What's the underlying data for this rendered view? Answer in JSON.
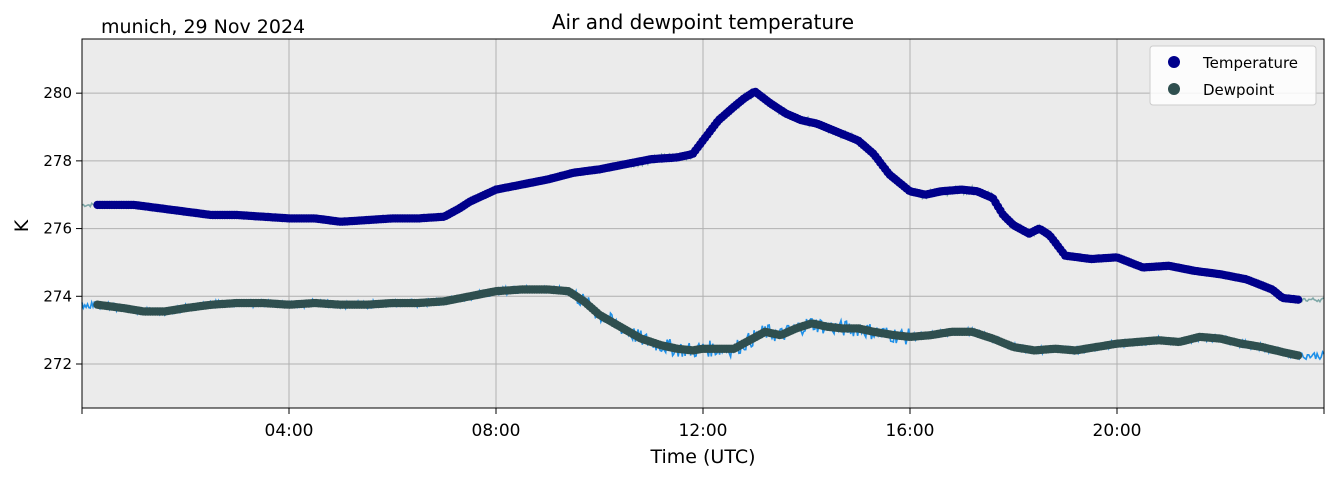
{
  "header": {
    "location_date": "munich, 29 Nov 2024"
  },
  "chart_data": {
    "type": "line",
    "title": "Air and dewpoint temperature",
    "xlabel": "Time (UTC)",
    "ylabel": "K",
    "xlim_hours": [
      0,
      24
    ],
    "ylim": [
      270.7,
      281.6
    ],
    "grid": true,
    "legend_position": "top-right",
    "x_ticks": [
      {
        "hour": 4,
        "label": "04:00"
      },
      {
        "hour": 8,
        "label": "08:00"
      },
      {
        "hour": 12,
        "label": "12:00"
      },
      {
        "hour": 16,
        "label": "16:00"
      },
      {
        "hour": 20,
        "label": "20:00"
      }
    ],
    "y_ticks": [
      272,
      274,
      276,
      278,
      280
    ],
    "series": [
      {
        "name": "Temperature",
        "color": "#00008b",
        "raw_color": "#7fa8a8",
        "x": [
          0.3,
          1.0,
          1.5,
          2.0,
          2.5,
          3.0,
          3.5,
          4.0,
          4.5,
          5.0,
          5.5,
          6.0,
          6.5,
          7.0,
          7.3,
          7.5,
          8.0,
          8.5,
          9.0,
          9.5,
          10.0,
          10.5,
          11.0,
          11.5,
          11.8,
          12.0,
          12.3,
          12.6,
          12.8,
          13.0,
          13.3,
          13.6,
          13.9,
          14.2,
          14.6,
          15.0,
          15.3,
          15.6,
          16.0,
          16.3,
          16.6,
          17.0,
          17.3,
          17.6,
          17.8,
          18.0,
          18.3,
          18.5,
          18.7,
          19.0,
          19.5,
          20.0,
          20.5,
          21.0,
          21.5,
          22.0,
          22.5,
          23.0,
          23.2,
          23.5
        ],
        "values": [
          276.7,
          276.7,
          276.6,
          276.5,
          276.4,
          276.4,
          276.35,
          276.3,
          276.3,
          276.2,
          276.25,
          276.3,
          276.3,
          276.35,
          276.6,
          276.8,
          277.15,
          277.3,
          277.45,
          277.65,
          277.75,
          277.9,
          278.05,
          278.1,
          278.2,
          278.6,
          279.2,
          279.6,
          279.85,
          280.05,
          279.7,
          279.4,
          279.2,
          279.1,
          278.85,
          278.6,
          278.2,
          277.6,
          277.1,
          277.0,
          277.1,
          277.15,
          277.1,
          276.9,
          276.4,
          276.1,
          275.85,
          276.0,
          275.8,
          275.2,
          275.1,
          275.15,
          274.85,
          274.9,
          274.75,
          274.65,
          274.5,
          274.2,
          273.95,
          273.9
        ]
      },
      {
        "name": "Dewpoint",
        "color": "#2f4f4f",
        "raw_color": "#1e90e8",
        "x": [
          0.3,
          0.8,
          1.2,
          1.6,
          2.0,
          2.5,
          3.0,
          3.5,
          4.0,
          4.5,
          5.0,
          5.5,
          6.0,
          6.5,
          7.0,
          7.5,
          8.0,
          8.5,
          9.0,
          9.4,
          9.7,
          10.0,
          10.4,
          10.8,
          11.2,
          11.5,
          11.8,
          12.0,
          12.3,
          12.6,
          12.9,
          13.2,
          13.5,
          13.8,
          14.1,
          14.4,
          14.7,
          15.0,
          15.3,
          15.7,
          16.0,
          16.4,
          16.8,
          17.2,
          17.6,
          18.0,
          18.4,
          18.8,
          19.2,
          19.6,
          20.0,
          20.4,
          20.8,
          21.2,
          21.6,
          22.0,
          22.4,
          22.8,
          23.2,
          23.5
        ],
        "values": [
          273.75,
          273.65,
          273.55,
          273.55,
          273.65,
          273.75,
          273.8,
          273.8,
          273.75,
          273.8,
          273.75,
          273.75,
          273.8,
          273.8,
          273.85,
          274.0,
          274.15,
          274.2,
          274.2,
          274.15,
          273.85,
          273.45,
          273.1,
          272.75,
          272.55,
          272.45,
          272.4,
          272.45,
          272.45,
          272.45,
          272.7,
          272.95,
          272.85,
          273.05,
          273.2,
          273.1,
          273.05,
          273.05,
          272.95,
          272.85,
          272.8,
          272.85,
          272.95,
          272.95,
          272.75,
          272.5,
          272.4,
          272.45,
          272.4,
          272.5,
          272.6,
          272.65,
          272.7,
          272.65,
          272.8,
          272.75,
          272.6,
          272.5,
          272.35,
          272.25
        ]
      }
    ]
  }
}
